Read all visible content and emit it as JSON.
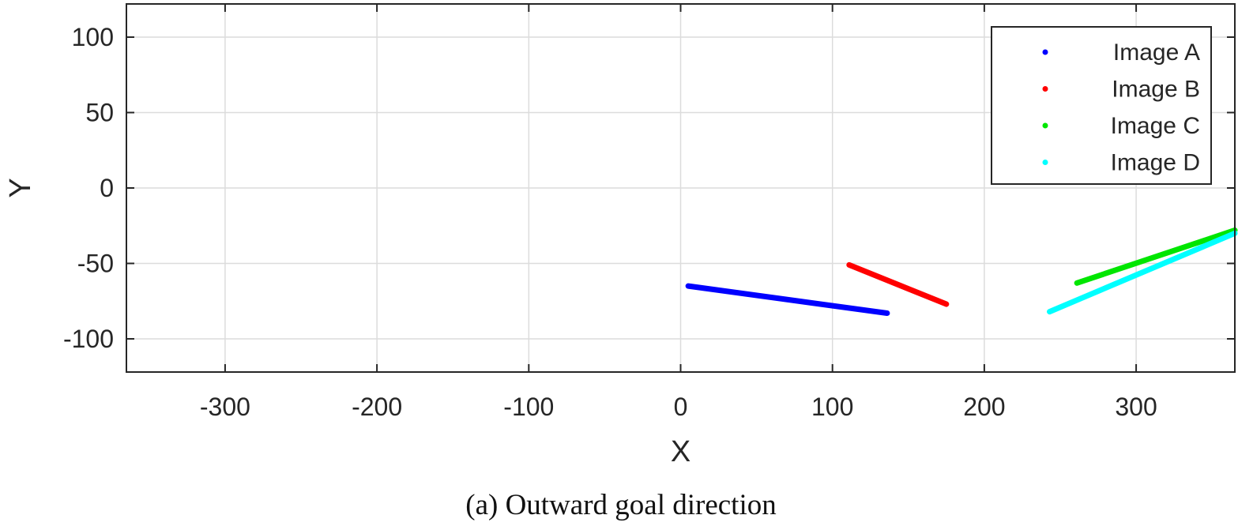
{
  "chart_data": {
    "type": "scatter",
    "title": "",
    "caption": "(a) Outward goal direction",
    "xlabel": "X",
    "ylabel": "Y",
    "xlim": [
      -365,
      365
    ],
    "ylim": [
      -122,
      122
    ],
    "xticks": [
      -300,
      -200,
      -100,
      0,
      100,
      200,
      300
    ],
    "yticks": [
      100,
      50,
      0,
      -50,
      -100
    ],
    "grid": true,
    "legend_position": "top-right",
    "series": [
      {
        "name": "Image A",
        "color": "#0000ff",
        "start": [
          5,
          -65
        ],
        "end": [
          136,
          -83
        ]
      },
      {
        "name": "Image B",
        "color": "#ff0000",
        "start": [
          111,
          -51
        ],
        "end": [
          175,
          -77
        ]
      },
      {
        "name": "Image C",
        "color": "#00e600",
        "start": [
          261,
          -63
        ],
        "end": [
          365,
          -28
        ]
      },
      {
        "name": "Image D",
        "color": "#00ffff",
        "start": [
          243,
          -82
        ],
        "end": [
          365,
          -30
        ]
      }
    ]
  }
}
